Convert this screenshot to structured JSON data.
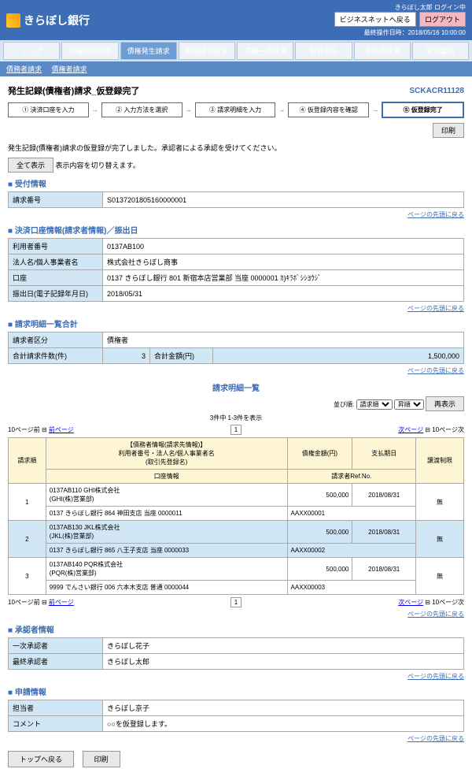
{
  "header": {
    "bank_name": "きらぼし銀行",
    "login_user": "きらぼし太郎 ログイン中",
    "btn_back": "ビジネスネットへ戻る",
    "btn_logout": "ログアウト",
    "last_op": "最終操作日時：2018/05/16 10:00:00"
  },
  "nav": [
    "トップ",
    "債権情報照会",
    "債権発生請求",
    "債権譲渡請求",
    "債権一括請求",
    "融資申込",
    "その他請求",
    "管理業務"
  ],
  "subnav": [
    "債務者請求",
    "債権者請求"
  ],
  "page": {
    "title": "発生記録(債権者)請求_仮登録完了",
    "code": "SCKACR11128"
  },
  "steps": [
    "① 決済口座を入力",
    "② 入力方法を選択",
    "③ 請求明細を入力",
    "④ 仮登録内容を確認",
    "⑤ 仮登録完了"
  ],
  "print": "印刷",
  "msg": "発生記録(債権者)請求の仮登録が完了しました。承認者による承認を受けてください。",
  "toggle_btn": "全て表示",
  "toggle_label": "表示内容を切り替えます。",
  "s1": {
    "title": "受付情報",
    "no_lbl": "請求番号",
    "no": "S0137201805160000001"
  },
  "s2": {
    "title": "決済口座情報(請求者情報)／振出日",
    "r1l": "利用者番号",
    "r1": "0137AB100",
    "r2l": "法人名/個人事業者名",
    "r2": "株式会社きらぼし商事",
    "r3l": "口座",
    "r3": "0137 きらぼし銀行 801 新宿本店営業部 当座 0000001 ｶ)ｷﾗﾎﾞｼｼﾖｳｼﾞ",
    "r4l": "振出日(電子記録年月日)",
    "r4": "2018/05/31"
  },
  "s3": {
    "title": "請求明細一覧合計",
    "r1l": "請求者区分",
    "r1": "債権者",
    "r2l": "合計請求件数(件)",
    "r2": "3",
    "r2l2": "合計金額(円)",
    "r2v2": "1,500,000"
  },
  "list": {
    "title": "請求明細一覧",
    "sort_label": "並び順:",
    "sort_opt": "請求順",
    "order": "昇順",
    "redo": "再表示",
    "count": "3件中 1-3件を表示",
    "pg_prev10": "10ページ前",
    "pg_prev": "前ページ",
    "pg_next": "次ページ",
    "pg_next10": "10ページ次",
    "h1": "請求順",
    "h2": "【債務者情報(請求先情報)】\n利用者番号・法人名/個人事業者名\n(取引先登録名)",
    "h3": "債権金額(円)",
    "h4": "支払期日",
    "h5": "譲渡制限",
    "h2b": "口座情報",
    "h3b": "請求者Ref.No.",
    "rows": [
      {
        "no": "1",
        "a": "0137AB110 GHI株式会社\n(GHI(株)営業部)",
        "amt": "500,000",
        "date": "2018/08/31",
        "lim": "無",
        "b": "0137 きらぼし銀行 864 神田支店 当座 0000011",
        "ref": "AAXX00001"
      },
      {
        "no": "2",
        "a": "0137AB130 JKL株式会社\n(JKL(株)営業部)",
        "amt": "500,000",
        "date": "2018/08/31",
        "lim": "無",
        "b": "0137 きらぼし銀行 865 八王子支店 当座 0000033",
        "ref": "AAXX00002"
      },
      {
        "no": "3",
        "a": "0137AB140 PQR株式会社\n(PQR(株)営業部)",
        "amt": "500,000",
        "date": "2018/08/31",
        "lim": "無",
        "b": "9999 でんさい銀行 006 六本木支店 普通 0000044",
        "ref": "AAXX00003"
      }
    ]
  },
  "s4": {
    "title": "承認者情報",
    "r1l": "一次承認者",
    "r1": "きらぼし花子",
    "r2l": "最終承認者",
    "r2": "きらぼし太郎"
  },
  "s5": {
    "title": "申請情報",
    "r1l": "担当者",
    "r1": "きらぼし京子",
    "r2l": "コメント",
    "r2": "○○を仮登録します。"
  },
  "footer": {
    "top": "トップへ戻る",
    "print": "印刷"
  },
  "toplink": "ページの先頭に戻る"
}
